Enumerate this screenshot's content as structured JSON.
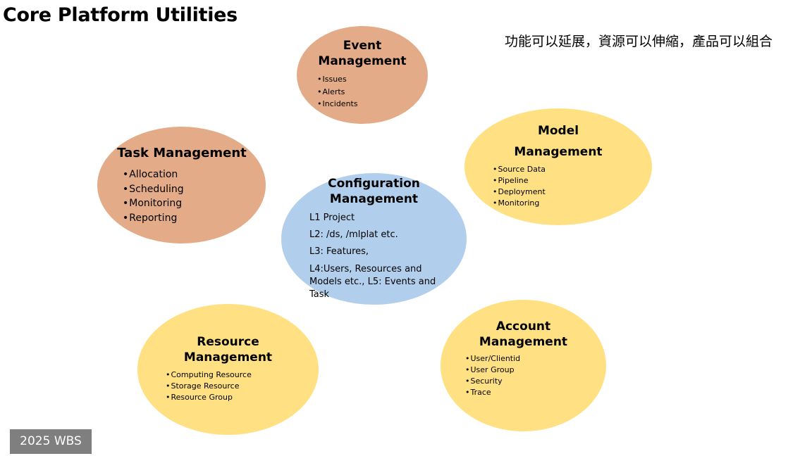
{
  "title": "Core Platform Utilities",
  "subtitle": "功能可以延展，資源可以伸縮，產品可以組合",
  "badge": "2025 WBS",
  "colors": {
    "orange": "#e3ab87",
    "yellow": "#ffe082",
    "blue": "#b1cfec"
  },
  "modules": {
    "event": {
      "title_line1": "Event",
      "title_line2": "Management",
      "items": [
        "Issues",
        "Alerts",
        "Incidents"
      ]
    },
    "task": {
      "title": "Task Management",
      "items": [
        "Allocation",
        "Scheduling",
        "Monitoring",
        "Reporting"
      ]
    },
    "model": {
      "title_line1": "Model",
      "title_line2": "Management",
      "items": [
        "Source Data",
        "Pipeline",
        "Deployment",
        "Monitoring"
      ]
    },
    "configuration": {
      "title_line1": "Configuration",
      "title_line2": "Management",
      "items": [
        "L1 Project",
        "L2: /ds, /mlplat etc.",
        "L3: Features,",
        "L4:Users, Resources and Models etc.,  L5: Events and Task"
      ]
    },
    "resource": {
      "title_line1": "Resource",
      "title_line2": "Management",
      "items": [
        "Computing Resource",
        "Storage Resource",
        "Resource Group"
      ]
    },
    "account": {
      "title_line1": "Account",
      "title_line2": "Management",
      "items": [
        "User/Clientid",
        "User Group",
        "Security",
        "Trace"
      ]
    }
  }
}
